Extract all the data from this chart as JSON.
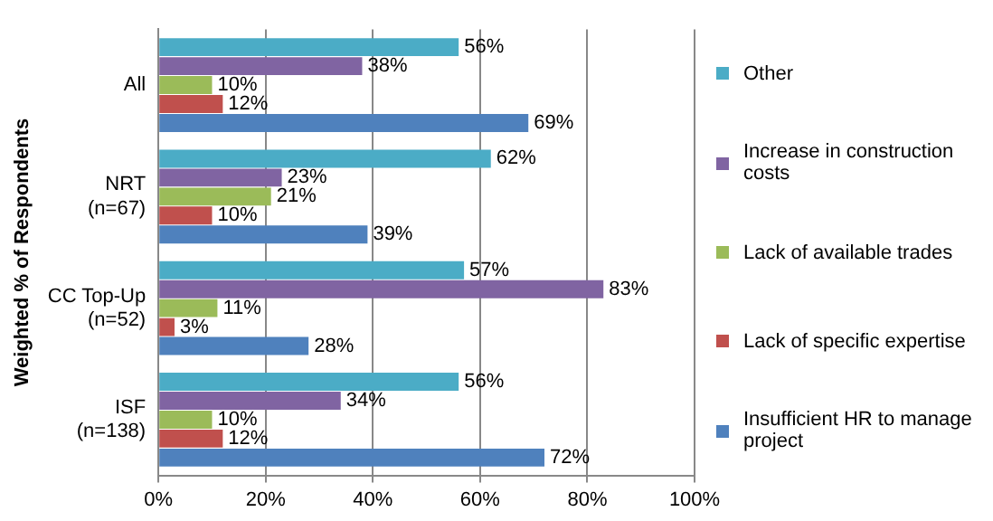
{
  "chart_data": {
    "type": "bar",
    "orientation": "horizontal",
    "ylabel": "Weighted % of Respondents",
    "categories": [
      "All",
      "NRT (n=67)",
      "CC Top-Up (n=52)",
      "ISF (n=138)"
    ],
    "series": [
      {
        "name": "Other",
        "color": "#4bacc6",
        "values": [
          56,
          62,
          57,
          56
        ],
        "value_labels": [
          "56%",
          "62%",
          "57%",
          "56%"
        ]
      },
      {
        "name": "Increase in construction costs",
        "color": "#8064a2",
        "values": [
          38,
          23,
          83,
          34
        ],
        "value_labels": [
          "38%",
          "23%",
          "83%",
          "34%"
        ]
      },
      {
        "name": "Lack of available trades",
        "color": "#9bbb59",
        "values": [
          10,
          21,
          11,
          10
        ],
        "value_labels": [
          "10%",
          "21%",
          "11%",
          "10%"
        ]
      },
      {
        "name": "Lack of specific expertise",
        "color": "#c0504d",
        "values": [
          12,
          10,
          3,
          12
        ],
        "value_labels": [
          "12%",
          "10%",
          "3%",
          "12%"
        ]
      },
      {
        "name": "Insufficient HR to manage project",
        "color": "#4f81bd",
        "values": [
          69,
          39,
          28,
          72
        ],
        "value_labels": [
          "69%",
          "39%",
          "28%",
          "72%"
        ]
      }
    ],
    "xlim": [
      0,
      100
    ],
    "xticks": [
      {
        "value": 0,
        "label": "0%"
      },
      {
        "value": 20,
        "label": "20%"
      },
      {
        "value": 40,
        "label": "40%"
      },
      {
        "value": 60,
        "label": "60%"
      },
      {
        "value": 80,
        "label": "80%"
      },
      {
        "value": 100,
        "label": "100%"
      }
    ],
    "grid": "x",
    "legend": "right"
  }
}
